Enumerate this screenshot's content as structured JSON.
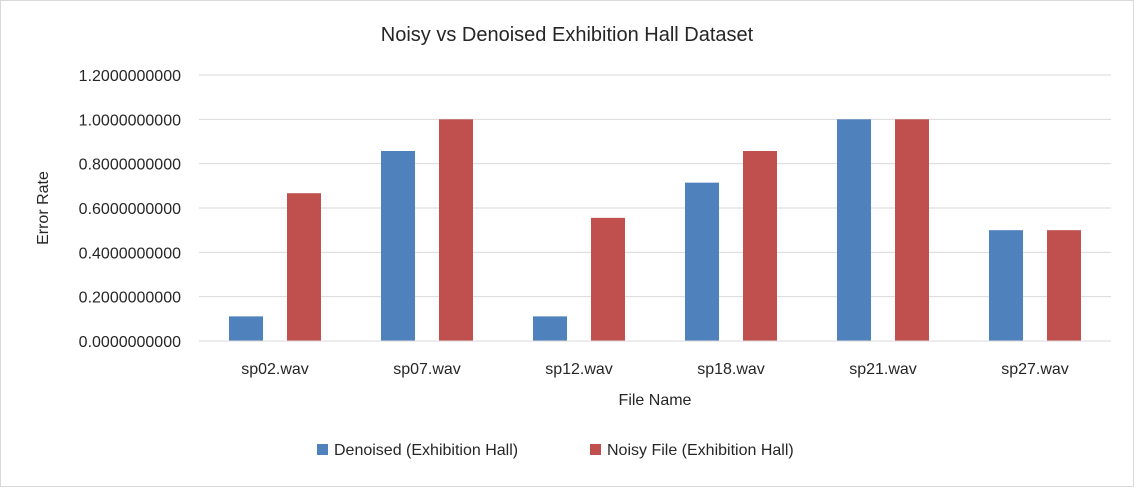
{
  "chart_data": {
    "type": "bar",
    "title": "Noisy vs Denoised Exhibition Hall Dataset",
    "xlabel": "File Name",
    "ylabel": "Error Rate",
    "categories": [
      "sp02.wav",
      "sp07.wav",
      "sp12.wav",
      "sp18.wav",
      "sp21.wav",
      "sp27.wav"
    ],
    "ylim": [
      0,
      1.2
    ],
    "yticks": [
      0,
      0.2,
      0.4,
      0.6,
      0.8,
      1.0,
      1.2
    ],
    "ytick_labels": [
      "0.0000000000",
      "0.2000000000",
      "0.4000000000",
      "0.6000000000",
      "0.8000000000",
      "1.0000000000",
      "1.2000000000"
    ],
    "grid": true,
    "legend_position": "bottom",
    "series": [
      {
        "name": "Denoised (Exhibition Hall)",
        "color": "#4f81bd",
        "values": [
          0.1111111111,
          0.8571428571,
          0.1111111111,
          0.7142857143,
          1.0,
          0.5
        ]
      },
      {
        "name": "Noisy File (Exhibition Hall)",
        "color": "#c0504d",
        "values": [
          0.6666666667,
          1.0,
          0.5555555556,
          0.8571428571,
          1.0,
          0.5
        ]
      }
    ]
  }
}
